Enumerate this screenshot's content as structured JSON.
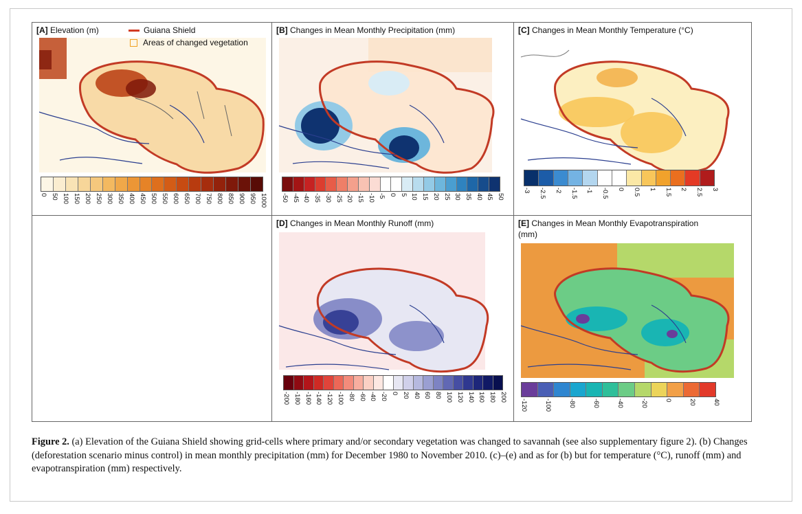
{
  "panels": {
    "a": {
      "label": "[A]",
      "title": "Elevation (m)",
      "legend_line": "Guiana Shield",
      "legend_box": "Areas of changed vegetation",
      "colors": [
        "#fdf6e6",
        "#fbedd0",
        "#f9e3b5",
        "#f7d699",
        "#f5c87d",
        "#f3b960",
        "#f0a849",
        "#ec9636",
        "#e68327",
        "#de6f1d",
        "#d35c16",
        "#c74b12",
        "#b83b0f",
        "#a62d0d",
        "#93220b",
        "#7f190a",
        "#6b1208",
        "#580c06"
      ],
      "ticks": [
        "0",
        "50",
        "100",
        "150",
        "200",
        "250",
        "300",
        "350",
        "400",
        "450",
        "500",
        "550",
        "600",
        "650",
        "700",
        "750",
        "800",
        "850",
        "900",
        "950",
        "1000"
      ]
    },
    "b": {
      "label": "[B]",
      "title": "Changes in Mean Monthly Precipitation (mm)",
      "colors": [
        "#7a0d0d",
        "#a31414",
        "#c62222",
        "#dc3d2f",
        "#e75c48",
        "#ef7f68",
        "#f4a08c",
        "#f8c2b3",
        "#fbdcd4",
        "#ffffff",
        "#ffffff",
        "#d9ecf5",
        "#b8dcee",
        "#93cae6",
        "#6db6dc",
        "#4a9ed0",
        "#2f83bf",
        "#1e67a8",
        "#164c8c",
        "#0f3370"
      ],
      "ticks": [
        "-50",
        "-45",
        "-40",
        "-35",
        "-30",
        "-25",
        "-20",
        "-15",
        "-10",
        "-5",
        "0",
        "5",
        "10",
        "15",
        "20",
        "25",
        "30",
        "35",
        "40",
        "45",
        "50"
      ]
    },
    "c": {
      "label": "[C]",
      "title": "Changes in Mean Monthly Temperature (°C)",
      "colors": [
        "#08306b",
        "#1c5ca8",
        "#3b8bd0",
        "#74b3e3",
        "#b3d6ef",
        "#ffffff",
        "#ffffff",
        "#fbe8a6",
        "#f8c65a",
        "#f1a22c",
        "#ea6f1f",
        "#e43a25",
        "#b01c1c"
      ],
      "ticks": [
        "-3",
        "-2.5",
        "-2",
        "-1.5",
        "-1",
        "-0.5",
        "0",
        "0.5",
        "1",
        "1.5",
        "2",
        "2.5",
        "3"
      ]
    },
    "d": {
      "label": "[D]",
      "title": "Changes in Mean Monthly Runoff (mm)",
      "colors": [
        "#67000d",
        "#8f0a12",
        "#b3151a",
        "#cf2a24",
        "#e0443a",
        "#ec6757",
        "#f38b7b",
        "#f8ae9f",
        "#fbd0c4",
        "#fde8e2",
        "#ffffff",
        "#e7e7f3",
        "#d0d0ea",
        "#b6b9df",
        "#9a9fd2",
        "#7d83c3",
        "#6168b4",
        "#464ea3",
        "#2f3890",
        "#1d267a",
        "#101965",
        "#080f4f"
      ],
      "ticks": [
        "-200",
        "-180",
        "-160",
        "-140",
        "-120",
        "-100",
        "-80",
        "-60",
        "-40",
        "-20",
        "0",
        "20",
        "40",
        "60",
        "80",
        "100",
        "120",
        "140",
        "160",
        "180",
        "200"
      ]
    },
    "e": {
      "label": "[E]",
      "title": "Changes in Mean Monthly Evapotranspiration",
      "title2": "(mm)",
      "colors": [
        "#6a3d9a",
        "#4a5fb5",
        "#2f86d0",
        "#1aa6cf",
        "#19b5b3",
        "#2fbf9a",
        "#6ccc86",
        "#b5d86a",
        "#ecd45a",
        "#f2a048",
        "#ec6a35",
        "#e23a2a"
      ],
      "ticks": [
        "-120",
        "-100",
        "-80",
        "-60",
        "-40",
        "-20",
        "0",
        "20",
        "40"
      ]
    }
  },
  "caption": {
    "label": "Figure 2.",
    "text_a": " (a) Elevation of the Guiana Shield showing grid-cells where primary and/or secondary vegetation was changed to savannah (see also supplementary figure 2). (b) Changes (deforestation scenario minus control) in mean monthly precipitation (mm) for December 1980 to November 2010. (c)–(e) and as for (b) but for temperature (°C), runoff (mm) and evapotranspiration (mm) respectively."
  }
}
